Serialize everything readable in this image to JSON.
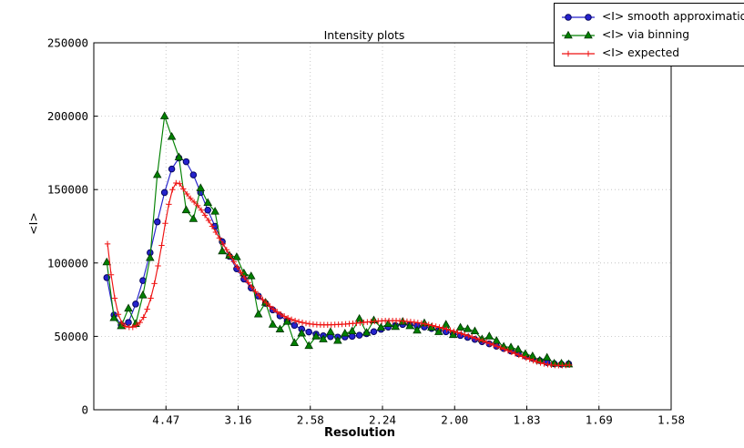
{
  "chart_data": {
    "type": "line",
    "title": "Intensity plots",
    "xlabel": "Resolution",
    "ylabel": "<I>",
    "grid": "dotted",
    "legend_position": "top-right",
    "x_axis": {
      "unit": "angstrom d-spacing labels at positions equally spaced in 1/d^2",
      "range": [
        0.0,
        0.4
      ],
      "tick_positions": [
        0.05,
        0.1,
        0.15,
        0.2,
        0.25,
        0.3,
        0.35,
        0.4
      ],
      "tick_labels": [
        "4.47",
        "3.16",
        "2.58",
        "2.24",
        "2.00",
        "1.83",
        "1.69",
        "1.58"
      ]
    },
    "y_axis": {
      "range": [
        0,
        250000
      ],
      "ticks": [
        0,
        50000,
        100000,
        150000,
        200000,
        250000
      ],
      "tick_labels": [
        "0",
        "50000",
        "100000",
        "150000",
        "200000",
        "250000"
      ]
    },
    "series": [
      {
        "name": "<I> smooth approximation",
        "color": "#2522cc",
        "marker": "circle",
        "marker_edge": "#000055",
        "x_start": 0.009,
        "x_step": 0.005,
        "values": [
          90000,
          64500,
          57800,
          59500,
          72000,
          88000,
          107000,
          128000,
          148000,
          164000,
          171500,
          169000,
          160000,
          148000,
          136000,
          125000,
          114500,
          104500,
          96000,
          89000,
          83000,
          77500,
          72500,
          68000,
          64000,
          60500,
          57500,
          55000,
          53000,
          51500,
          50400,
          49800,
          49500,
          49600,
          50000,
          50800,
          51800,
          53200,
          54800,
          56300,
          57400,
          58100,
          57900,
          57300,
          56400,
          55400,
          54300,
          53100,
          51900,
          50600,
          49300,
          47900,
          46400,
          44900,
          43300,
          41700,
          40000,
          38300,
          36600,
          35000,
          33500,
          32200,
          31300,
          31000,
          31200
        ]
      },
      {
        "name": "<I> via binning",
        "color": "#008000",
        "marker": "triangle",
        "marker_edge": "#003300",
        "x_start": 0.009,
        "x_step": 0.005,
        "values": [
          100500,
          62500,
          57000,
          69000,
          58500,
          78000,
          103500,
          160000,
          200000,
          186000,
          172000,
          136000,
          130000,
          151000,
          141000,
          135000,
          108000,
          105000,
          104000,
          93000,
          91000,
          65000,
          73000,
          58000,
          54800,
          60000,
          45500,
          52000,
          43500,
          50000,
          48000,
          53000,
          47000,
          52000,
          53500,
          62000,
          52500,
          61000,
          56000,
          58500,
          56500,
          60000,
          57000,
          54000,
          59000,
          56000,
          53000,
          58000,
          51000,
          56000,
          55000,
          53500,
          48000,
          50000,
          47000,
          43000,
          42500,
          41000,
          38000,
          36500,
          33500,
          35500,
          31500,
          31500,
          31000
        ]
      },
      {
        "name": "<I> expected",
        "color": "#ee1111",
        "marker": "plus",
        "marker_edge": "#ee1111",
        "x_start": 0.0095,
        "x_step": 0.0025,
        "values": [
          113000,
          92000,
          76000,
          65000,
          59000,
          56800,
          56300,
          56300,
          57500,
          59500,
          63000,
          68500,
          76000,
          86000,
          98000,
          112000,
          127000,
          140000,
          150000,
          154500,
          154000,
          150500,
          147000,
          144000,
          141500,
          139000,
          136000,
          132500,
          129000,
          125000,
          121000,
          117000,
          113000,
          109000,
          105000,
          101000,
          97200,
          93500,
          90000,
          86700,
          83500,
          80500,
          77700,
          75100,
          72700,
          70500,
          68500,
          66700,
          65100,
          63700,
          62500,
          61500,
          60700,
          60000,
          59400,
          58900,
          58500,
          58200,
          58000,
          57900,
          57850,
          57850,
          57900,
          58000,
          58100,
          58250,
          58400,
          58600,
          58800,
          59000,
          59250,
          59500,
          59750,
          60000,
          60200,
          60400,
          60550,
          60650,
          60700,
          60700,
          60650,
          60550,
          60400,
          60200,
          59950,
          59650,
          59300,
          58900,
          58450,
          57950,
          57400,
          56800,
          56150,
          55500,
          54800,
          54100,
          53400,
          52650,
          51900,
          51100,
          50300,
          49500,
          48650,
          47800,
          46900,
          46000,
          45100,
          44150,
          43200,
          42250,
          41300,
          40300,
          39300,
          38300,
          37300,
          36300,
          35300,
          34400,
          33500,
          32700,
          32000,
          31400,
          30900,
          30500,
          30300,
          30200,
          30200,
          30300,
          30500
        ]
      }
    ]
  }
}
